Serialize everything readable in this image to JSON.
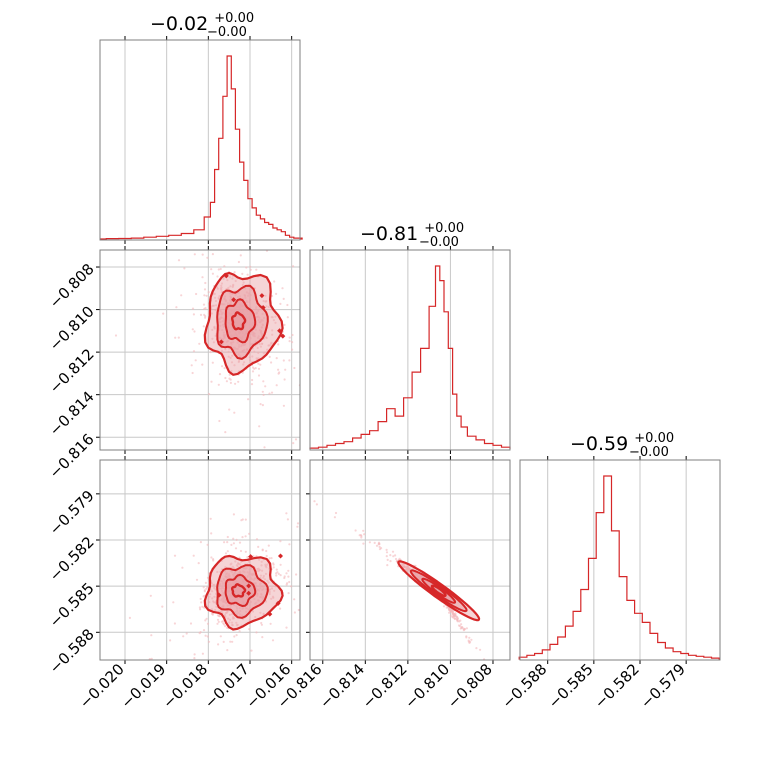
{
  "colors": {
    "series": "#d62728",
    "contour_fill": "#e8a0a5",
    "scatter": "#f3b9bd",
    "grid": "#c8c8c8",
    "frame": "#7f7f7f"
  },
  "chart_data": {
    "type": "corner",
    "grid": true,
    "parameters": [
      {
        "index": 0,
        "title_value": "−0.02",
        "title_plus": "+0.00",
        "title_minus": "−0.00",
        "range": [
          -0.0206,
          -0.0158
        ],
        "ticks": [
          -0.02,
          -0.019,
          -0.018,
          -0.017,
          -0.016
        ],
        "tick_labels": [
          "−0.020",
          "−0.019",
          "−0.018",
          "−0.017",
          "−0.016"
        ],
        "mean": -0.01735,
        "sd": 0.00022,
        "skew": 0.00035
      },
      {
        "index": 1,
        "title_value": "−0.81",
        "title_plus": "+0.00",
        "title_minus": "−0.00",
        "range": [
          -0.8166,
          -0.8072
        ],
        "ticks": [
          -0.816,
          -0.814,
          -0.812,
          -0.81,
          -0.808
        ],
        "tick_labels": [
          "−0.816",
          "−0.814",
          "−0.812",
          "−0.810",
          "−0.808"
        ],
        "mean": -0.81055,
        "sd": 0.00045,
        "skew": -0.0012
      },
      {
        "index": 2,
        "title_value": "−0.59",
        "title_plus": "+0.00",
        "title_minus": "−0.00",
        "range": [
          -0.5898,
          -0.5768
        ],
        "ticks": [
          -0.588,
          -0.585,
          -0.582,
          -0.579
        ],
        "tick_labels": [
          "−0.588",
          "−0.585",
          "−0.582",
          "−0.579"
        ],
        "mean": -0.5853,
        "sd": 0.00045,
        "skew": 0.0017
      }
    ],
    "histograms": [
      {
        "param": 0,
        "x": [
          -0.0203,
          -0.02,
          -0.0197,
          -0.0194,
          -0.0191,
          -0.0188,
          -0.0185,
          -0.0182,
          -0.018,
          -0.0179,
          -0.0178,
          -0.0177,
          -0.0176,
          -0.0175,
          -0.0174,
          -0.0173,
          -0.0172,
          -0.0171,
          -0.017,
          -0.0169,
          -0.0168,
          -0.0167,
          -0.0166,
          -0.0165,
          -0.0164,
          -0.0163,
          -0.0162,
          -0.0161,
          -0.016,
          -0.0159
        ],
        "counts": [
          0.2,
          0.3,
          0.5,
          1,
          1.5,
          2,
          3,
          5,
          12,
          20,
          38,
          55,
          78,
          100,
          82,
          60,
          42,
          32,
          22,
          17,
          13,
          11,
          9,
          8,
          6,
          5,
          4,
          2,
          1,
          0.5
        ]
      },
      {
        "param": 1,
        "x": [
          -0.8164,
          -0.816,
          -0.8156,
          -0.8152,
          -0.8148,
          -0.8144,
          -0.814,
          -0.8136,
          -0.8132,
          -0.8128,
          -0.8124,
          -0.812,
          -0.8116,
          -0.8112,
          -0.8108,
          -0.8106,
          -0.8104,
          -0.8102,
          -0.81,
          -0.8098,
          -0.8096,
          -0.8094,
          -0.809,
          -0.8086,
          -0.8082,
          -0.8078,
          -0.8074
        ],
        "counts": [
          0.5,
          1,
          2,
          3,
          4,
          6,
          8,
          10,
          15,
          22,
          18,
          28,
          42,
          55,
          78,
          100,
          92,
          75,
          55,
          30,
          18,
          12,
          7,
          5,
          3,
          2,
          1
        ]
      },
      {
        "param": 2,
        "x": [
          -0.5896,
          -0.5891,
          -0.5886,
          -0.5881,
          -0.5876,
          -0.5871,
          -0.5866,
          -0.5861,
          -0.5856,
          -0.5851,
          -0.5846,
          -0.5841,
          -0.5836,
          -0.5831,
          -0.5826,
          -0.5821,
          -0.5816,
          -0.5811,
          -0.5806,
          -0.5801,
          -0.5796,
          -0.5791,
          -0.5786,
          -0.5781,
          -0.5776,
          -0.5771
        ],
        "counts": [
          1,
          2,
          3,
          5,
          8,
          12,
          18,
          26,
          38,
          55,
          80,
          100,
          70,
          45,
          32,
          25,
          20,
          14,
          9,
          6,
          4,
          3,
          2,
          1.5,
          1,
          0.5
        ]
      }
    ],
    "scatter_pairs": [
      {
        "x_param": 0,
        "y_param": 1,
        "n_points": 700,
        "correlation": -0.35
      },
      {
        "x_param": 0,
        "y_param": 2,
        "n_points": 700,
        "correlation": 0.35
      },
      {
        "x_param": 1,
        "y_param": 2,
        "n_points": 700,
        "correlation": -0.995
      }
    ]
  }
}
